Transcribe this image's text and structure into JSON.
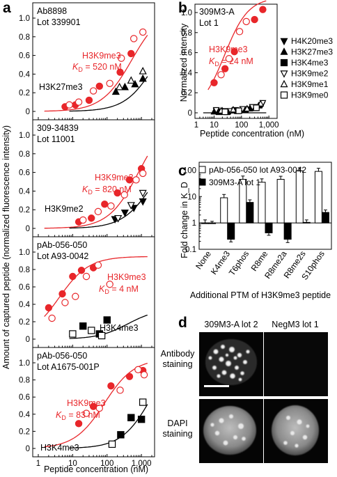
{
  "colors": {
    "red": "#e8262a",
    "black": "#000000"
  },
  "panels": {
    "a": {
      "letter": "a"
    },
    "b": {
      "letter": "b"
    },
    "c": {
      "letter": "c"
    },
    "d": {
      "letter": "d"
    }
  },
  "chart_data": [
    {
      "panel": "a",
      "type": "scatter",
      "scale": "log-x",
      "ylabel": "Amount of captured peptide (normalized fluorescence intensity)",
      "xlabel": "Peptide concentration (nM)",
      "xticks": [
        "1",
        "10",
        "100",
        "1,000"
      ],
      "yticks": [
        "0",
        "0.2",
        "0.4",
        "0.6",
        "0.8",
        "1.0"
      ],
      "xlim": [
        1,
        2000
      ],
      "ylim": [
        0,
        1.1
      ],
      "subplots": [
        {
          "antibody_line1": "Ab8898",
          "antibody_line2": "Lot 339901",
          "series": [
            {
              "name": "H3K9me3",
              "label_line2": "K_D = 520 nM",
              "color": "red",
              "marker": "circle",
              "fit_kd": 520,
              "fit_max": 1.1,
              "filled": {
                "x": [
                  6,
                  12,
                  30,
                  60,
                  240,
                  500
                ],
                "y": [
                  0.05,
                  0.07,
                  0.12,
                  0.27,
                  0.42,
                  0.62
                ]
              },
              "open": {
                "x": [
                  8,
                  15,
                  40,
                  120,
                  260,
                  600,
                  1100
                ],
                "y": [
                  0.07,
                  0.1,
                  0.22,
                  0.3,
                  0.57,
                  0.78,
                  0.85
                ]
              }
            },
            {
              "name": "H3K27me3",
              "color": "black",
              "marker": "triangle-up",
              "fit_kd": 2500,
              "fit_max": 1.0,
              "filled": {
                "x": [
                  180,
                  330,
                  650,
                  1100
                ],
                "y": [
                  0.21,
                  0.26,
                  0.29,
                  0.35
                ]
              },
              "open": {
                "x": [
                  230,
                  500,
                  1100
                ],
                "y": [
                  0.26,
                  0.33,
                  0.43
                ]
              }
            }
          ]
        },
        {
          "antibody_line1": "309-34839",
          "antibody_line2": "Lot 11001",
          "series": [
            {
              "name": "H3K9me3",
              "label_line2": "K_D = 820 nM",
              "color": "red",
              "marker": "circle",
              "fit_kd": 820,
              "fit_max": 1.2,
              "filled": {
                "x": [
                  15,
                  35,
                  85,
                  200,
                  450,
                  1000
                ],
                "y": [
                  0.07,
                  0.11,
                  0.26,
                  0.38,
                  0.52,
                  0.64
                ]
              },
              "open": {
                "x": [
                  20,
                  55,
                  130,
                  320,
                  700,
                  1100
                ],
                "y": [
                  0.09,
                  0.18,
                  0.24,
                  0.36,
                  0.52,
                  0.59
                ]
              }
            },
            {
              "name": "H3K9me2",
              "color": "black",
              "marker": "triangle-down",
              "fit_kd": 2000,
              "fit_max": 0.9,
              "filled": {
                "x": [
                  170,
                  330,
                  600,
                  1100
                ],
                "y": [
                  0.1,
                  0.17,
                  0.22,
                  0.29
                ]
              },
              "open": {
                "x": [
                  210,
                  500,
                  1100
                ],
                "y": [
                  0.11,
                  0.25,
                  0.38
                ]
              }
            }
          ]
        },
        {
          "antibody_line1": "pAb-056-050",
          "antibody_line2": "Lot A93-0042",
          "series": [
            {
              "name": "H3K9me3",
              "label_line2": "K_D = 4 nM",
              "color": "red",
              "marker": "circle",
              "fit_kd": 4,
              "fit_max": 0.95,
              "filled": {
                "x": [
                  2,
                  5,
                  10,
                  18,
                  40
                ],
                "y": [
                  0.36,
                  0.52,
                  0.72,
                  0.79,
                  0.82
                ]
              },
              "open": {
                "x": [
                  2.5,
                  6,
                  12,
                  25,
                  55,
                  120
                ],
                "y": [
                  0.24,
                  0.42,
                  0.49,
                  0.72,
                  0.85,
                  0.63
                ]
              }
            },
            {
              "name": "H3K4me3",
              "color": "black",
              "marker": "square",
              "fit_kd": 400,
              "fit_max": 0.35,
              "filled": {
                "x": [
                  20,
                  60,
                  100
                ],
                "y": [
                  0.15,
                  0.06,
                  0.22
                ]
              },
              "open": {
                "x": [
                  10,
                  35,
                  70
                ],
                "y": [
                  0.06,
                  0.1,
                  0.04
                ]
              }
            }
          ]
        },
        {
          "antibody_line1": "pAb-056-050",
          "antibody_line2": "Lot A1675-001P",
          "series": [
            {
              "name": "H3K9me3",
              "label_line2": "K_D = 83 nM",
              "color": "red",
              "marker": "circle",
              "fit_kd": 83,
              "fit_max": 1.05,
              "filled": {
                "x": [
                  15,
                  40,
                  130,
                  450,
                  1100
                ],
                "y": [
                  0.29,
                  0.49,
                  0.73,
                  0.84,
                  0.91
                ]
              },
              "open": {
                "x": [
                  25,
                  60,
                  240,
                  800,
                  1200
                ],
                "y": [
                  0.41,
                  0.47,
                  0.68,
                  0.92,
                  0.86
                ]
              }
            },
            {
              "name": "H3K4me3",
              "color": "black",
              "marker": "square",
              "fit_kd": 2000,
              "fit_max": 1.2,
              "filled": {
                "x": [
                  250,
                  500,
                  1000
                ],
                "y": [
                  0.16,
                  0.36,
                  0.34
                ]
              },
              "open": {
                "x": [
                  140,
                  1100
                ],
                "y": [
                  0.05,
                  0.54
                ]
              }
            }
          ]
        }
      ]
    },
    {
      "panel": "b",
      "type": "scatter",
      "scale": "log-x",
      "antibody_line1": "309M3-A",
      "antibody_line2": "Lot 1",
      "ylabel": "Normalized intensity",
      "xlabel": "Peptide concentration (nM)",
      "xticks": [
        "1",
        "10",
        "100",
        "1,000"
      ],
      "yticks": [
        "0",
        "0.2",
        "0.4",
        "0.6",
        "0.8",
        "1.0"
      ],
      "xlim": [
        2,
        2000
      ],
      "ylim": [
        0,
        1.1
      ],
      "fit": {
        "name": "H3K9me3",
        "label_line2": "K_D = 24 nM",
        "kd": 24,
        "max": 1.15
      },
      "series": [
        {
          "name": "H3K9me3",
          "color": "red",
          "filled": {
            "x": [
              10,
              25,
              55,
              300,
              600
            ],
            "y": [
              0.3,
              0.44,
              0.61,
              0.93,
              1.03
            ]
          },
          "open": {
            "x": [
              18,
              35,
              85,
              150
            ],
            "y": [
              0.38,
              0.54,
              0.81,
              0.91
            ]
          }
        },
        {
          "name": "H4K20me3",
          "marker": "triangle-down-filled",
          "x": [
            12,
            25,
            60,
            130,
            280,
            560
          ],
          "y": [
            0.02,
            0.02,
            0.03,
            0.04,
            0.06,
            0.08
          ]
        },
        {
          "name": "H3K27me3",
          "marker": "triangle-up-filled",
          "x": [
            10,
            20,
            45,
            95,
            200,
            420
          ],
          "y": [
            0.01,
            0.02,
            0.02,
            0.03,
            0.04,
            0.07
          ]
        },
        {
          "name": "H3K4me3",
          "marker": "square-filled",
          "x": [
            15,
            30,
            70,
            140,
            320
          ],
          "y": [
            0.01,
            0.01,
            0.02,
            0.03,
            0.05
          ]
        },
        {
          "name": "H3K9me2",
          "marker": "triangle-down-open",
          "x": [
            12,
            40,
            110,
            250,
            600
          ],
          "y": [
            0.03,
            0.02,
            0.04,
            0.06,
            0.1
          ]
        },
        {
          "name": "H3K9me1",
          "marker": "triangle-up-open",
          "x": [
            18,
            50,
            160,
            500
          ],
          "y": [
            0.02,
            0.03,
            0.04,
            0.09
          ]
        },
        {
          "name": "H3K9me0",
          "marker": "square-open",
          "x": [
            25,
            80,
            350
          ],
          "y": [
            0.01,
            0.02,
            0.05
          ]
        }
      ]
    },
    {
      "panel": "c",
      "type": "bar",
      "scale": "log-y",
      "ylabel": "Fold change in K_D",
      "xlabel": "Additional PTM of H3K9me3 peptide",
      "categories": [
        "None",
        "K4me3",
        "T6phos",
        "R8me",
        "R8me2a",
        "R8me2s",
        "S10phos"
      ],
      "yticks": [
        "0.1",
        "1",
        "10",
        "100"
      ],
      "ylim": [
        0.1,
        200
      ],
      "series": [
        {
          "name": "pAb-056-050 lot A93-0042",
          "fill": "white",
          "values": [
            1.0,
            9,
            45,
            35,
            45,
            95,
            90
          ],
          "err": [
            0.3,
            3,
            15,
            12,
            14,
            28,
            28
          ]
        },
        {
          "name": "309M3-A lot 1",
          "fill": "black",
          "values": [
            1.0,
            0.24,
            6,
            0.42,
            0.24,
            1.05,
            2.5
          ],
          "err": [
            0.15,
            0.05,
            1.5,
            0.08,
            0.06,
            0.25,
            0.6
          ]
        }
      ]
    },
    {
      "panel": "d",
      "type": "images",
      "columns": [
        "309M3-A lot 2",
        "NegM3 lot 1"
      ],
      "rows": [
        {
          "line1": "Antibody",
          "line2": "staining"
        },
        {
          "line1": "DAPI",
          "line2": "staining"
        }
      ]
    }
  ]
}
